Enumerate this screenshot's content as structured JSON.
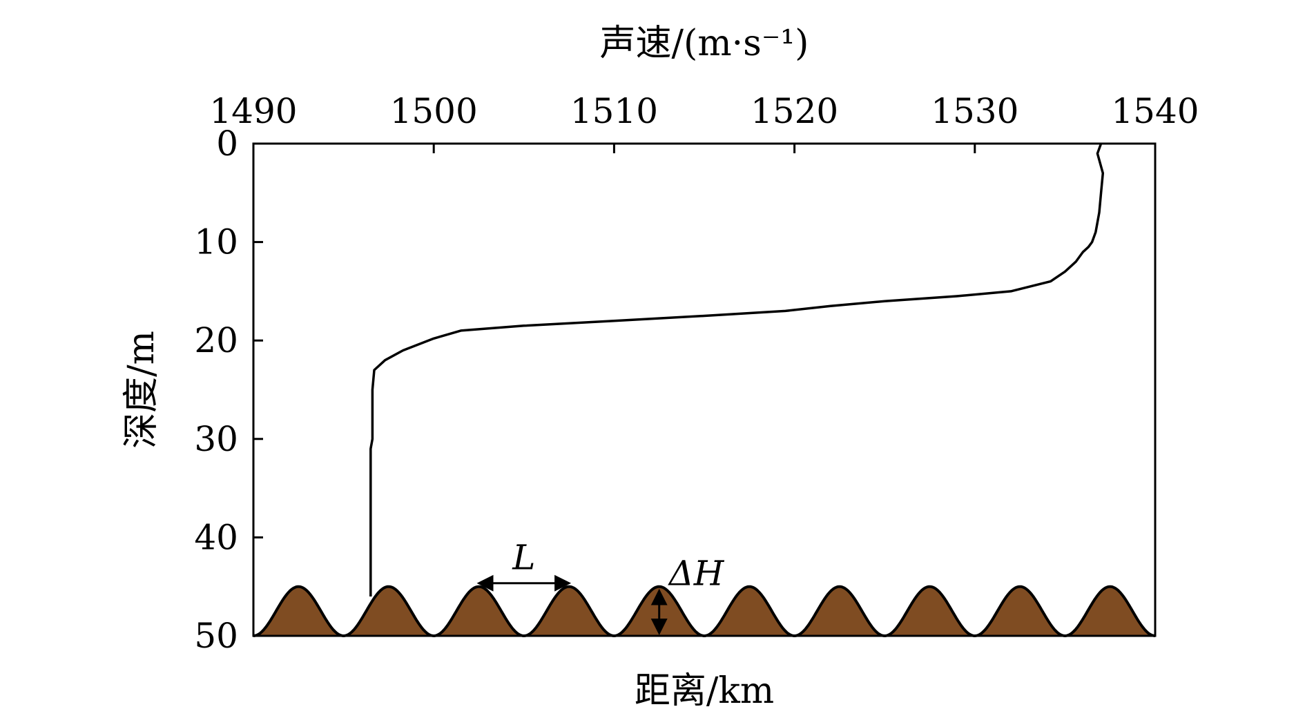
{
  "chart_data": {
    "type": "line",
    "title": "",
    "xlabel_top": "声速/(m·s⁻¹)",
    "xlabel_bottom": "距离/km",
    "ylabel": "深度/m",
    "xlim": [
      1490,
      1540
    ],
    "ylim": [
      0,
      50
    ],
    "y_inverted": true,
    "x_ticks": [
      1490,
      1500,
      1510,
      1520,
      1530,
      1540
    ],
    "y_ticks": [
      0,
      10,
      20,
      30,
      40,
      50
    ],
    "grid": false,
    "series": [
      {
        "x": [
          1537.0,
          1536.8,
          1537.1,
          1537.0,
          1536.9,
          1536.8,
          1536.7,
          1536.5,
          1536.3,
          1536.0,
          1535.6,
          1535.0,
          1534.2,
          1532.0,
          1529.0,
          1525.0,
          1522.0,
          1519.5,
          1515.0,
          1510.0,
          1505.0,
          1501.5,
          1500.0,
          1498.3,
          1497.3,
          1496.7,
          1496.6,
          1496.6,
          1496.5,
          1496.5,
          1496.5,
          1496.5
        ],
        "y": [
          0,
          1,
          3,
          5,
          7,
          8,
          9,
          10,
          10.5,
          11,
          12,
          13,
          14,
          15,
          15.5,
          16,
          16.5,
          17,
          17.5,
          18,
          18.5,
          19,
          19.8,
          21,
          22,
          23,
          25,
          30,
          31,
          35,
          40,
          46
        ]
      }
    ],
    "seabed": {
      "shape": "sinusoidal",
      "color": "#7f4c22",
      "crest_depth": 45,
      "trough_depth": 50,
      "crest_speeds": [
        1492.5,
        1497.5,
        1502.5,
        1507.5,
        1512.5,
        1517.5,
        1522.5,
        1527.5,
        1532.5,
        1537.5
      ]
    },
    "annotations": [
      {
        "text": "L",
        "refers_to": "wavelength"
      },
      {
        "text": "ΔH",
        "refers_to": "height"
      }
    ]
  }
}
